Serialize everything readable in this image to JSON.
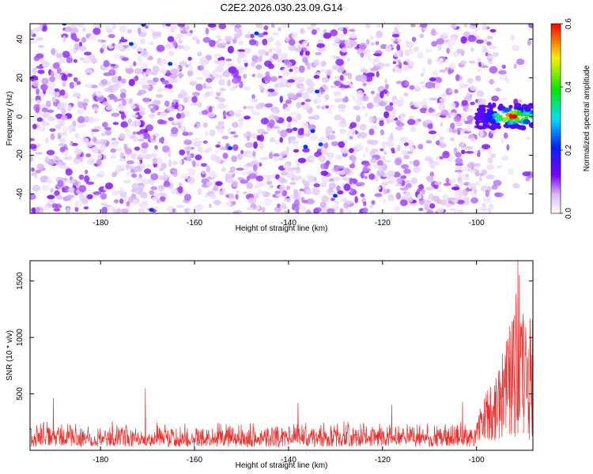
{
  "title": "C2E2.2026.030.23.09.G14",
  "chart_data": [
    {
      "type": "heatmap",
      "xlabel": "Height of straight line (km)",
      "ylabel": "Frequency (Hz)",
      "xlim": [
        -195,
        -88
      ],
      "ylim": [
        -50,
        48
      ],
      "xticks": [
        -180,
        -160,
        -140,
        -120,
        -100
      ],
      "yticks": [
        -40,
        -20,
        0,
        20,
        40
      ],
      "xtick_labels": [
        "-180",
        "-160",
        "-140",
        "-120",
        "-100"
      ],
      "ytick_labels": [
        "-40",
        "-20",
        "0",
        "20",
        "40"
      ],
      "colorbar": {
        "label": "Normalized spectral amplitude",
        "range": [
          0.0,
          0.6
        ],
        "ticks": [
          0.0,
          0.2,
          0.4,
          0.6
        ],
        "tick_labels": [
          "0.0",
          "0.2",
          "0.4",
          "0.6"
        ],
        "colormap": "rainbow (white to violet, blue, cyan, green, yellow, red)"
      },
      "signal_cluster": {
        "x_range": [
          -100,
          -88
        ],
        "frequency_center": 0,
        "frequency_halfwidth": 6,
        "peak_amplitude": 0.6,
        "peak_location": [
          -92,
          0
        ]
      },
      "background_amplitude_range": [
        0.02,
        0.12
      ]
    },
    {
      "type": "line",
      "xlabel": "Height of straight line (km)",
      "ylabel": "SNR (10 * v/v)",
      "xlim": [
        -195,
        -88
      ],
      "ylim": [
        0,
        1680
      ],
      "xticks": [
        -180,
        -160,
        -140,
        -120,
        -100
      ],
      "yticks": [
        500,
        1000,
        1500
      ],
      "xtick_labels": [
        "-180",
        "-160",
        "-140",
        "-120",
        "-100"
      ],
      "ytick_labels": [
        "500",
        "1000",
        "1500"
      ],
      "series": [
        {
          "name": "SNR",
          "color": "#e8302e",
          "baseline": 150,
          "noise_band": [
            30,
            300
          ],
          "max_spikes_background": [
            [
              -170.5,
              550
            ],
            [
              -190,
              460
            ],
            [
              -138,
              420
            ],
            [
              -118,
              405
            ],
            [
              -103,
              430
            ]
          ],
          "rise_start": -100,
          "key_points": [
            [
              -100,
              250
            ],
            [
              -97,
              520
            ],
            [
              -95,
              750
            ],
            [
              -93,
              1100
            ],
            [
              -92,
              1200
            ],
            [
              -91.2,
              1680
            ],
            [
              -90,
              1150
            ],
            [
              -89,
              900
            ],
            [
              -88,
              1400
            ]
          ]
        }
      ]
    }
  ]
}
